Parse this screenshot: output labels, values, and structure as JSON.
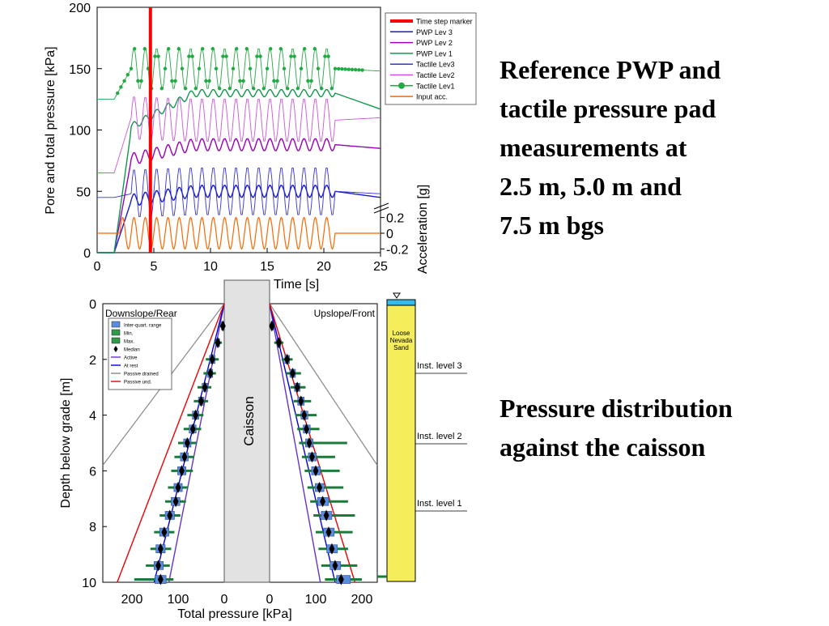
{
  "captions": {
    "top": "Reference PWP and\ntactile pressure pad\nmeasurements at\n2.5 m, 5.0 m and\n7.5 m bgs",
    "bottom": "Pressure distribution\nagainst the caisson"
  },
  "chart_data": [
    {
      "type": "line",
      "xlabel": "Time [s]",
      "ylabel": "Pore and total pressure [kPa]",
      "y2label": "Acceleration [g]",
      "xlim": [
        0,
        25
      ],
      "ylim": [
        0,
        200
      ],
      "xticks": [
        "0",
        "5",
        "10",
        "15",
        "20",
        "25"
      ],
      "yticks": [
        "0",
        "50",
        "100",
        "150",
        "200"
      ],
      "y2ticks": [
        "0.2",
        "0",
        "-0.2"
      ],
      "time_step_marker": 4.7,
      "legend_position": "top-right",
      "legend": [
        "Time step marker",
        "PWP Lev 3",
        "PWP Lev 2",
        "PWP Lev 1",
        "Tactile Lev3",
        "Tactile Lev2",
        "Tactile Lev1",
        "Input acc."
      ],
      "colors": {
        "Time step marker": "#ff0000",
        "PWP Lev 3": "#1a1acc",
        "PWP Lev 2": "#9900bb",
        "PWP Lev 1": "#11994d",
        "Tactile Lev3": "#3333dd",
        "Tactile Lev2": "#cc55dd",
        "Tactile Lev1": "#22aa44",
        "Input acc.": "#ff6600"
      },
      "series": [
        {
          "name": "PWP Lev 3",
          "start": 0,
          "x_rise": 2,
          "rise_level": 42,
          "shake_level": 50,
          "end_level": 45,
          "cyclic_amplitude": 5
        },
        {
          "name": "PWP Lev 2",
          "start": 0,
          "x_rise": 2,
          "rise_level": 75,
          "shake_level": 88,
          "end_level": 85,
          "cyclic_amplitude": 5
        },
        {
          "name": "PWP Lev 1",
          "start": 0,
          "x_rise": 2,
          "rise_level": 100,
          "shake_level": 130,
          "end_level": 117,
          "cyclic_amplitude": 3
        },
        {
          "name": "Tactile Lev3",
          "start": 45,
          "x_rise": 2,
          "rise_level": 48,
          "shake_level": 50,
          "end_level": 48,
          "cyclic_amplitude": 20
        },
        {
          "name": "Tactile Lev2",
          "start": 65,
          "x_rise": 2,
          "rise_level": 110,
          "shake_level": 108,
          "end_level": 110,
          "cyclic_amplitude": 18
        },
        {
          "name": "Tactile Lev1",
          "start": 125,
          "x_rise": 2,
          "rise_level": 150,
          "shake_level": 150,
          "end_level": 148,
          "cyclic_amplitude": 17
        },
        {
          "name": "Input acc.",
          "unit": "g",
          "duration": [
            2,
            21
          ],
          "frequency_hz": 1,
          "amplitude": 0.2
        }
      ]
    },
    {
      "type": "box",
      "xlabel": "Total pressure [kPa]",
      "ylabel": "Depth below grade [m]",
      "ylim": [
        0,
        10
      ],
      "yticks": [
        "0",
        "2",
        "4",
        "6",
        "8",
        "10"
      ],
      "left_panel_label": "Downslope/Rear",
      "right_panel_label": "Upslope/Front",
      "left_xticks": [
        "200",
        "100",
        "0"
      ],
      "right_xticks": [
        "0",
        "100",
        "200"
      ],
      "caisson_label": "Caisson",
      "legend_position": "top-left",
      "legend": [
        "Inter-quart. range",
        "Min.",
        "Max.",
        "Median",
        "Active",
        "At rest",
        "Passive drained",
        "Passive und."
      ],
      "reference_lines": [
        {
          "name": "Active",
          "color": "#6633cc",
          "kpa_at_10m": 120
        },
        {
          "name": "At rest",
          "color": "#0000dd",
          "kpa_at_10m": 152
        },
        {
          "name": "Passive drained",
          "color": "#888888",
          "kpa_at_5_8m": 265
        },
        {
          "name": "Passive und.",
          "color": "#ee0000",
          "kpa_at_10m": 232
        }
      ],
      "downslope": [
        {
          "depth": 0.8,
          "median": 3,
          "q1": 0,
          "q3": 6,
          "min": -2,
          "max": 10
        },
        {
          "depth": 1.4,
          "median": 14,
          "q1": 10,
          "q3": 18,
          "min": 5,
          "max": 22
        },
        {
          "depth": 2.0,
          "median": 26,
          "q1": 20,
          "q3": 32,
          "min": 12,
          "max": 40
        },
        {
          "depth": 2.5,
          "median": 30,
          "q1": 25,
          "q3": 36,
          "min": 18,
          "max": 45
        },
        {
          "depth": 3.0,
          "median": 42,
          "q1": 36,
          "q3": 48,
          "min": 28,
          "max": 58
        },
        {
          "depth": 3.5,
          "median": 50,
          "q1": 44,
          "q3": 56,
          "min": 35,
          "max": 66
        },
        {
          "depth": 4.0,
          "median": 62,
          "q1": 55,
          "q3": 69,
          "min": 45,
          "max": 80
        },
        {
          "depth": 4.5,
          "median": 68,
          "q1": 61,
          "q3": 76,
          "min": 50,
          "max": 88
        },
        {
          "depth": 5.0,
          "median": 80,
          "q1": 72,
          "q3": 88,
          "min": 60,
          "max": 100
        },
        {
          "depth": 5.5,
          "median": 86,
          "q1": 78,
          "q3": 95,
          "min": 65,
          "max": 108
        },
        {
          "depth": 6.0,
          "median": 92,
          "q1": 83,
          "q3": 101,
          "min": 68,
          "max": 115
        },
        {
          "depth": 6.6,
          "median": 100,
          "q1": 91,
          "q3": 109,
          "min": 78,
          "max": 122
        },
        {
          "depth": 7.1,
          "median": 105,
          "q1": 96,
          "q3": 115,
          "min": 83,
          "max": 128
        },
        {
          "depth": 7.6,
          "median": 118,
          "q1": 108,
          "q3": 128,
          "min": 95,
          "max": 140
        },
        {
          "depth": 8.2,
          "median": 130,
          "q1": 120,
          "q3": 140,
          "min": 108,
          "max": 152
        },
        {
          "depth": 8.8,
          "median": 138,
          "q1": 128,
          "q3": 148,
          "min": 115,
          "max": 160
        },
        {
          "depth": 9.4,
          "median": 143,
          "q1": 132,
          "q3": 152,
          "min": 118,
          "max": 170
        },
        {
          "depth": 9.9,
          "median": 138,
          "q1": 126,
          "q3": 150,
          "min": 110,
          "max": 195
        }
      ],
      "upslope": [
        {
          "depth": 0.8,
          "median": 5,
          "q1": 3,
          "q3": 8,
          "min": 0,
          "max": 12
        },
        {
          "depth": 1.4,
          "median": 20,
          "q1": 16,
          "q3": 24,
          "min": 10,
          "max": 30
        },
        {
          "depth": 2.0,
          "median": 38,
          "q1": 33,
          "q3": 43,
          "min": 26,
          "max": 50
        },
        {
          "depth": 2.5,
          "median": 50,
          "q1": 44,
          "q3": 56,
          "min": 36,
          "max": 68
        },
        {
          "depth": 3.0,
          "median": 60,
          "q1": 54,
          "q3": 66,
          "min": 45,
          "max": 78
        },
        {
          "depth": 3.5,
          "median": 68,
          "q1": 61,
          "q3": 75,
          "min": 52,
          "max": 90
        },
        {
          "depth": 4.0,
          "median": 75,
          "q1": 68,
          "q3": 83,
          "min": 56,
          "max": 102
        },
        {
          "depth": 4.5,
          "median": 80,
          "q1": 73,
          "q3": 88,
          "min": 60,
          "max": 108
        },
        {
          "depth": 5.0,
          "median": 86,
          "q1": 78,
          "q3": 94,
          "min": 64,
          "max": 168
        },
        {
          "depth": 5.5,
          "median": 92,
          "q1": 84,
          "q3": 101,
          "min": 70,
          "max": 142
        },
        {
          "depth": 6.0,
          "median": 100,
          "q1": 91,
          "q3": 110,
          "min": 76,
          "max": 152
        },
        {
          "depth": 6.6,
          "median": 108,
          "q1": 99,
          "q3": 118,
          "min": 82,
          "max": 160
        },
        {
          "depth": 7.1,
          "median": 115,
          "q1": 104,
          "q3": 128,
          "min": 88,
          "max": 170
        },
        {
          "depth": 7.6,
          "median": 123,
          "q1": 112,
          "q3": 135,
          "min": 95,
          "max": 185
        },
        {
          "depth": 8.2,
          "median": 128,
          "q1": 117,
          "q3": 140,
          "min": 100,
          "max": 180
        },
        {
          "depth": 8.8,
          "median": 135,
          "q1": 124,
          "q3": 147,
          "min": 106,
          "max": 170
        },
        {
          "depth": 9.4,
          "median": 142,
          "q1": 131,
          "q3": 154,
          "min": 112,
          "max": 190
        },
        {
          "depth": 9.9,
          "median": 155,
          "q1": 145,
          "q3": 175,
          "min": 120,
          "max": 200
        }
      ]
    }
  ],
  "soil_column": {
    "material": "Loose\nNevada\nSand",
    "levels": [
      "Inst. level 3",
      "Inst. level 2",
      "Inst. level 1"
    ],
    "fill_color": "#f5ee5a",
    "water_color": "#33bbee"
  }
}
